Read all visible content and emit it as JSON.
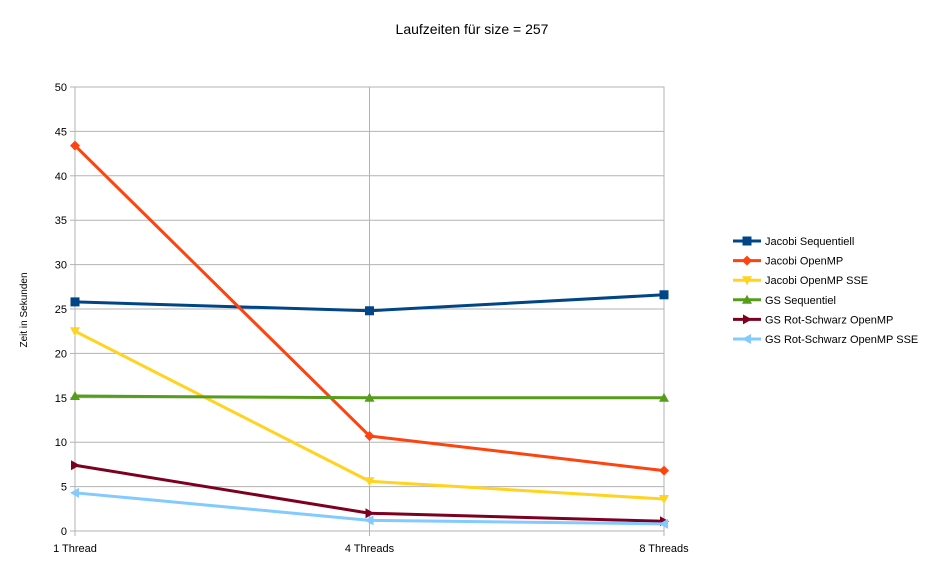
{
  "chart_data": {
    "type": "line",
    "title": "Laufzeiten für size = 257",
    "xlabel": "",
    "ylabel": "Zeit in Sekunden",
    "categories": [
      "1 Thread",
      "4 Threads",
      "8 Threads"
    ],
    "ylim": [
      0,
      50
    ],
    "yticks": [
      0,
      5,
      10,
      15,
      20,
      25,
      30,
      35,
      40,
      45,
      50
    ],
    "grid": true,
    "legend_position": "right",
    "series": [
      {
        "name": "Jacobi Sequentiell",
        "color": "#004586",
        "marker": "square",
        "values": [
          25.8,
          24.8,
          26.6
        ]
      },
      {
        "name": "Jacobi OpenMP",
        "color": "#ff420e",
        "marker": "diamond",
        "values": [
          43.4,
          10.7,
          6.8
        ]
      },
      {
        "name": "Jacobi OpenMP SSE",
        "color": "#ffd320",
        "marker": "triangle-down",
        "values": [
          22.5,
          5.6,
          3.6
        ]
      },
      {
        "name": "GS Sequentiel",
        "color": "#579d1c",
        "marker": "triangle-up",
        "values": [
          15.2,
          15.0,
          15.0
        ]
      },
      {
        "name": "GS Rot-Schwarz OpenMP",
        "color": "#7e0021",
        "marker": "triangle-right",
        "values": [
          7.4,
          2.0,
          1.1
        ]
      },
      {
        "name": "GS Rot-Schwarz OpenMP SSE",
        "color": "#83caff",
        "marker": "triangle-left",
        "values": [
          4.3,
          1.2,
          0.8
        ]
      }
    ]
  }
}
